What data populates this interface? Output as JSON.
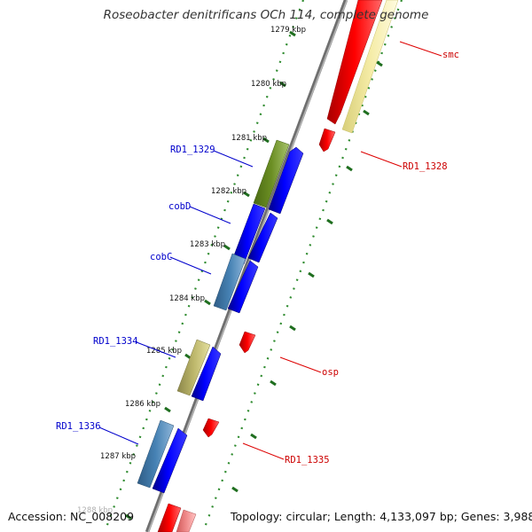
{
  "title": "Roseobacter denitrificans OCh 114, complete genome",
  "footer": {
    "accession": "Accession: NC_008209",
    "topology": "Topology: circular; Length: 4,133,097 bp; Genes: 3,988"
  },
  "colors": {
    "backbone": "#8c8c8c",
    "tick_dots": "#2e8b2e",
    "forward_label": "#0000cc",
    "reverse_label": "#cc0000",
    "blue_gene": "#0000ee",
    "olive_gene": "#6b8e23",
    "steel_gene": "#4682b4",
    "khaki_gene": "#bdb76b",
    "red_gene": "#ee0000",
    "pale_gene": "#f0e68c"
  },
  "kbp_ticks": [
    "1279 kbp",
    "1280 kbp",
    "1281 kbp",
    "1282 kbp",
    "1283 kbp",
    "1284 kbp",
    "1285 kbp",
    "1286 kbp",
    "1287 kbp",
    "1288 kbp"
  ],
  "genes": [
    {
      "label": "smc",
      "strand": "reverse"
    },
    {
      "label": "RD1_1328",
      "strand": "reverse"
    },
    {
      "label": "RD1_1329",
      "strand": "forward"
    },
    {
      "label": "cobD",
      "strand": "forward"
    },
    {
      "label": "cobC",
      "strand": "forward"
    },
    {
      "label": "RD1_1334",
      "strand": "forward"
    },
    {
      "label": "osp",
      "strand": "reverse"
    },
    {
      "label": "RD1_1336",
      "strand": "forward"
    },
    {
      "label": "RD1_1335",
      "strand": "reverse"
    }
  ]
}
